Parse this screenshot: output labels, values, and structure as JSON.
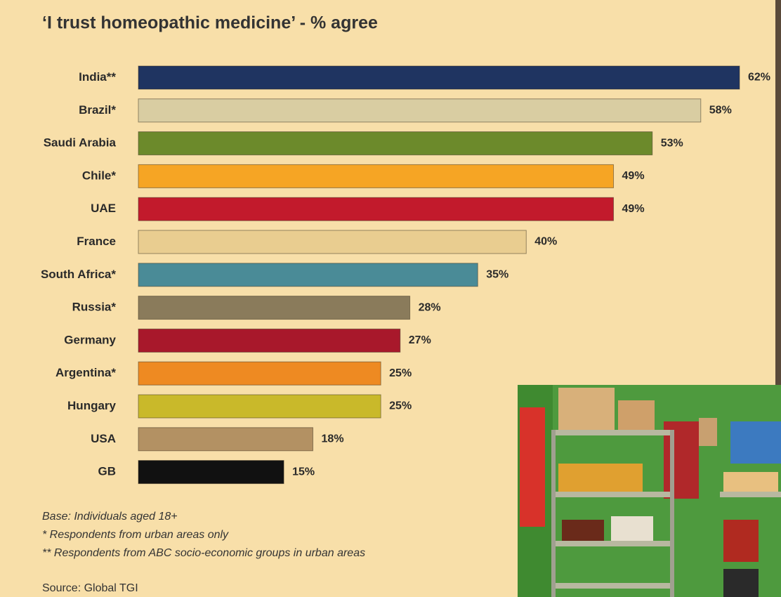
{
  "chart_data": {
    "type": "bar",
    "orientation": "horizontal",
    "title": "‘I trust homeopathic medicine’ - % agree",
    "categories": [
      "India**",
      "Brazil*",
      "Saudi Arabia",
      "Chile*",
      "UAE",
      "France",
      "South Africa*",
      "Russia*",
      "Germany",
      "Argentina*",
      "Hungary",
      "USA",
      "GB"
    ],
    "values": [
      62,
      58,
      53,
      49,
      49,
      40,
      35,
      28,
      27,
      25,
      25,
      18,
      15
    ],
    "value_labels": [
      "62%",
      "58%",
      "53%",
      "49%",
      "49%",
      "40%",
      "35%",
      "28%",
      "27%",
      "25%",
      "25%",
      "18%",
      "15%"
    ],
    "colors": [
      "#1f3461",
      "#d9cda2",
      "#6c8a2b",
      "#f6a524",
      "#c21a2c",
      "#e9cd90",
      "#4a8b97",
      "#8a7b5b",
      "#a8182b",
      "#ee8a22",
      "#c9b92a",
      "#b39163",
      "#111111"
    ],
    "notes": [
      "Base: Individuals aged 18+",
      "* Respondents from urban areas only",
      "** Respondents from ABC socio-economic groups in urban areas"
    ],
    "source": "Source: Global TGI"
  }
}
